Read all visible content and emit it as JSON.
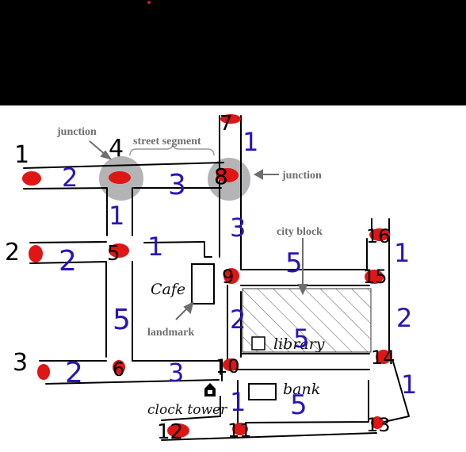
{
  "annotations": {
    "junction_left": "junction",
    "junction_right": "junction",
    "street_segment": "street segment",
    "city_block": "city block",
    "landmark": "landmark"
  },
  "places": {
    "cafe": "Cafe",
    "library": "library",
    "bank": "bank",
    "clock_tower": "clock tower"
  },
  "node_numbers": [
    "1",
    "2",
    "3",
    "4",
    "5",
    "6",
    "7",
    "8",
    "9",
    "10",
    "11",
    "12",
    "13",
    "14",
    "15",
    "16"
  ],
  "segment_numbers": [
    "2",
    "3",
    "1",
    "2",
    "1",
    "5",
    "3",
    "1",
    "3",
    "5",
    "1",
    "2",
    "2",
    "5",
    "1",
    "1",
    "5",
    "2"
  ],
  "colors": {
    "header_band": "#000000",
    "road_outline": "#000000",
    "node_dot": "#e01515",
    "junction_highlight": "#b4b4b6",
    "segment_label": "#2a14b8",
    "annotation_text": "#6e6e6e"
  }
}
